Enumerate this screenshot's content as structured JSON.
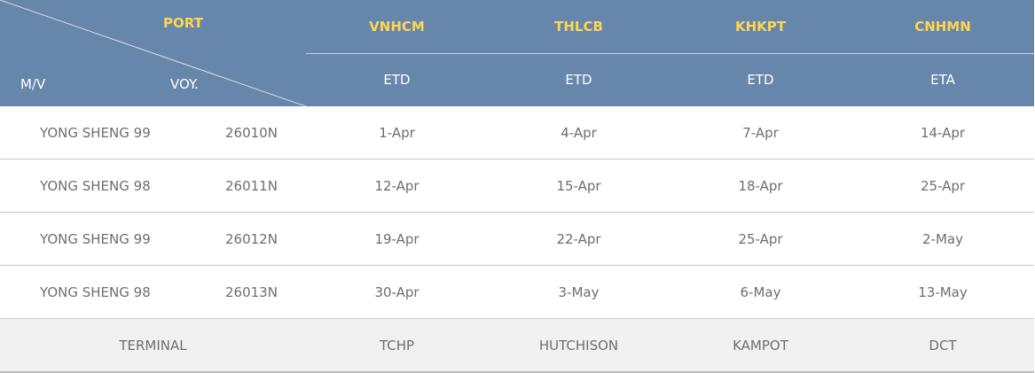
{
  "header": {
    "corner": {
      "port_label": "PORT",
      "mv_label": "M/V",
      "voy_label": "VOY."
    },
    "ports": [
      {
        "code": "VNHCM",
        "type": "ETD"
      },
      {
        "code": "THLCB",
        "type": "ETD"
      },
      {
        "code": "KHKPT",
        "type": "ETD"
      },
      {
        "code": "CNHMN",
        "type": "ETA"
      }
    ]
  },
  "rows": [
    {
      "vessel": "YONG SHENG 99",
      "voyage": "26010N",
      "dates": [
        "1-Apr",
        "4-Apr",
        "7-Apr",
        "14-Apr"
      ]
    },
    {
      "vessel": "YONG SHENG 98",
      "voyage": "26011N",
      "dates": [
        "12-Apr",
        "15-Apr",
        "18-Apr",
        "25-Apr"
      ]
    },
    {
      "vessel": "YONG SHENG 99",
      "voyage": "26012N",
      "dates": [
        "19-Apr",
        "22-Apr",
        "25-Apr",
        "2-May"
      ]
    },
    {
      "vessel": "YONG SHENG 98",
      "voyage": "26013N",
      "dates": [
        "30-Apr",
        "3-May",
        "6-May",
        "13-May"
      ]
    }
  ],
  "terminal": {
    "label": "TERMINAL",
    "values": [
      "TCHP",
      "HUTCHISON",
      "KAMPOT",
      "DCT"
    ]
  },
  "colors": {
    "header_bg": "#6687ab",
    "port_text": "#ffd54f",
    "terminal_bg": "#f1f1f1"
  }
}
